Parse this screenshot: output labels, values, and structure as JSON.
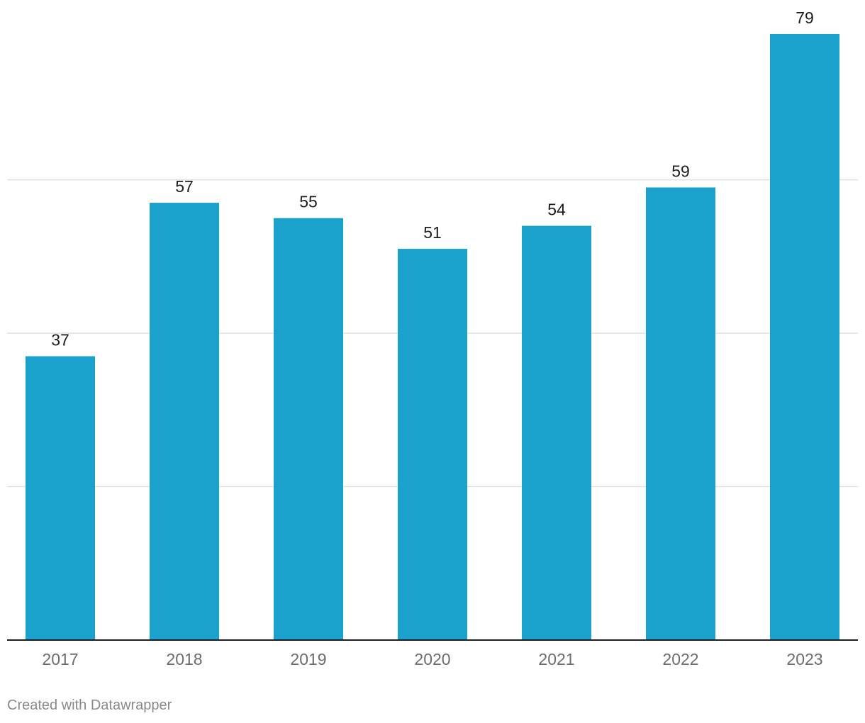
{
  "chart_data": {
    "type": "bar",
    "categories": [
      "2017",
      "2018",
      "2019",
      "2020",
      "2021",
      "2022",
      "2023"
    ],
    "values": [
      37,
      57,
      55,
      51,
      54,
      59,
      79
    ],
    "title": "",
    "xlabel": "",
    "ylabel": "",
    "ylim": [
      0,
      79
    ],
    "gridlines": [
      20,
      40,
      60
    ],
    "grid": true,
    "legend": "none",
    "show_value_labels": true,
    "bar_color": "#1aa1cc"
  },
  "footer": {
    "credit": "Created with Datawrapper"
  }
}
